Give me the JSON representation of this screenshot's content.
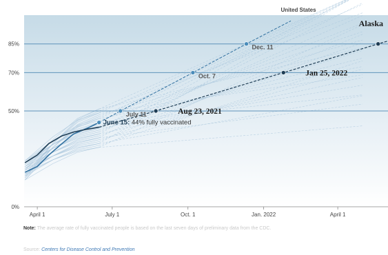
{
  "chart_data": {
    "type": "line",
    "ylim": [
      0,
      100
    ],
    "xlim": [
      "2021-03-16",
      "2022-06-01"
    ],
    "grid_lines": [
      50,
      70,
      85
    ],
    "y_ticks": [
      {
        "value": 0,
        "label": "0%"
      },
      {
        "value": 50,
        "label": "50%"
      },
      {
        "value": 70,
        "label": "70%"
      },
      {
        "value": 85,
        "label": "85%"
      }
    ],
    "x_ticks": [
      {
        "date": "2021-04-01",
        "label": "April 1"
      },
      {
        "date": "2021-07-01",
        "label": "July 1"
      },
      {
        "date": "2021-10-01",
        "label": "Oct. 1"
      },
      {
        "date": "2022-01-01",
        "label": "Jan. 2022"
      },
      {
        "date": "2022-04-01",
        "label": "April 1"
      }
    ],
    "series": [
      {
        "name": "United States",
        "actual": [
          {
            "date": "2021-03-17",
            "value": 18
          },
          {
            "date": "2021-04-01",
            "value": 21
          },
          {
            "date": "2021-04-15",
            "value": 27
          },
          {
            "date": "2021-05-01",
            "value": 33
          },
          {
            "date": "2021-05-15",
            "value": 38
          },
          {
            "date": "2021-06-01",
            "value": 41
          },
          {
            "date": "2021-06-15",
            "value": 44
          }
        ],
        "projection": [
          {
            "date": "2021-06-15",
            "value": 44
          },
          {
            "date": "2021-07-11",
            "value": 50
          },
          {
            "date": "2021-10-07",
            "value": 70
          },
          {
            "date": "2021-12-11",
            "value": 85
          },
          {
            "date": "2022-02-03",
            "value": 97
          }
        ],
        "milestones": [
          {
            "date": "2021-06-15",
            "value": 44,
            "label": "June 15:",
            "sublabel": "44% fully vaccinated"
          },
          {
            "date": "2021-07-11",
            "value": 50,
            "label": "July 11"
          },
          {
            "date": "2021-10-07",
            "value": 70,
            "label": "Oct. 7"
          },
          {
            "date": "2021-12-11",
            "value": 85,
            "label": "Dec. 11"
          }
        ]
      },
      {
        "name": "Alaska",
        "actual": [
          {
            "date": "2021-03-17",
            "value": 23
          },
          {
            "date": "2021-04-01",
            "value": 27
          },
          {
            "date": "2021-04-15",
            "value": 33
          },
          {
            "date": "2021-05-01",
            "value": 37
          },
          {
            "date": "2021-05-15",
            "value": 39
          },
          {
            "date": "2021-06-01",
            "value": 40.5
          },
          {
            "date": "2021-06-15",
            "value": 41.5
          }
        ],
        "projection": [
          {
            "date": "2021-06-15",
            "value": 41.5
          },
          {
            "date": "2021-08-23",
            "value": 50
          },
          {
            "date": "2022-01-25",
            "value": 70
          },
          {
            "date": "2022-05-20",
            "value": 85
          },
          {
            "date": "2022-06-01",
            "value": 86.5
          }
        ],
        "milestones": [
          {
            "date": "2021-08-23",
            "value": 50,
            "label": "Aug 23, 2021"
          },
          {
            "date": "2022-01-25",
            "value": 70,
            "label": "Jan 25, 2022"
          },
          {
            "date": "2022-05-20",
            "value": 85
          }
        ]
      }
    ],
    "colors": {
      "us": "#2f6f9f",
      "us_dot": "#4a8cba",
      "alaska": "#1e3d55",
      "grid": "#5f93ba",
      "background_top": "#c6dbe7",
      "background_bottom": "#ffffff",
      "other_states": "#a9c6dc"
    }
  },
  "footer": {
    "note_label": "Note:",
    "note_text": "The average rate of fully vaccinated people is based on the last seven days of preliminary data from the CDC.",
    "source_label": "Source:",
    "source_text": "Centers for Disease Control and Prevention"
  }
}
